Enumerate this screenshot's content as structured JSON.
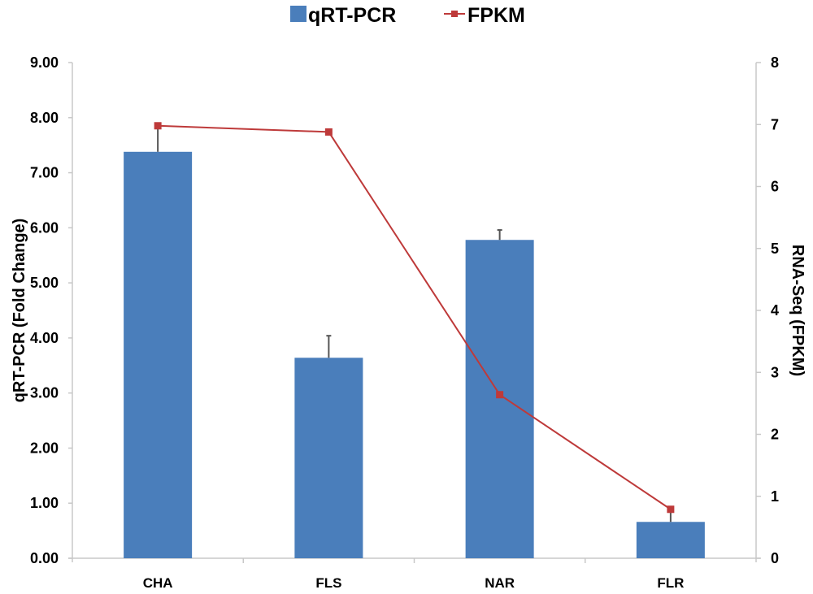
{
  "chart_data": {
    "type": "bar",
    "categories": [
      "CHA",
      "FLS",
      "NAR",
      "FLR"
    ],
    "series": [
      {
        "name": "qRT-PCR",
        "type": "bar",
        "axis": "left",
        "color": "#4a7ebb",
        "values": [
          7.38,
          3.64,
          5.78,
          0.66
        ],
        "error_plus": [
          0.47,
          0.4,
          0.18,
          0.18
        ]
      },
      {
        "name": "FPKM",
        "type": "line",
        "axis": "right",
        "color": "#be3a3a",
        "marker": "square",
        "values": [
          6.98,
          6.88,
          2.64,
          0.79
        ]
      }
    ],
    "title": "",
    "xlabel": "",
    "ylabel": "qRT-PCR (Fold Change)",
    "y2label": "RNA-Seq (FPKM)",
    "ylim": [
      0,
      9
    ],
    "y2lim": [
      0,
      8
    ],
    "yticks": [
      "0.00",
      "1.00",
      "2.00",
      "3.00",
      "4.00",
      "5.00",
      "6.00",
      "7.00",
      "8.00",
      "9.00"
    ],
    "y2ticks": [
      "0",
      "1",
      "2",
      "3",
      "4",
      "5",
      "6",
      "7",
      "8"
    ],
    "legend": [
      "qRT-PCR",
      "FPKM"
    ],
    "legend_position": "top",
    "grid": false
  }
}
